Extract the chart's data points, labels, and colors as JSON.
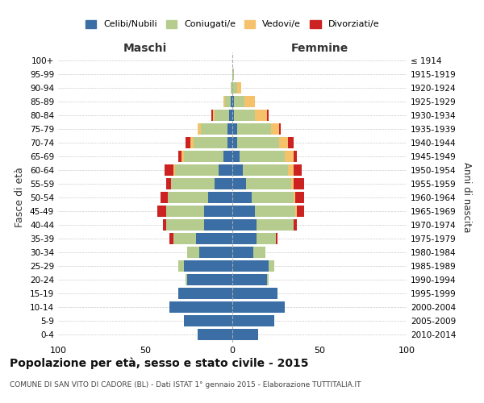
{
  "age_groups": [
    "0-4",
    "5-9",
    "10-14",
    "15-19",
    "20-24",
    "25-29",
    "30-34",
    "35-39",
    "40-44",
    "45-49",
    "50-54",
    "55-59",
    "60-64",
    "65-69",
    "70-74",
    "75-79",
    "80-84",
    "85-89",
    "90-94",
    "95-99",
    "100+"
  ],
  "birth_years": [
    "2010-2014",
    "2005-2009",
    "2000-2004",
    "1995-1999",
    "1990-1994",
    "1985-1989",
    "1980-1984",
    "1975-1979",
    "1970-1974",
    "1965-1969",
    "1960-1964",
    "1955-1959",
    "1950-1954",
    "1945-1949",
    "1940-1944",
    "1935-1939",
    "1930-1934",
    "1925-1929",
    "1920-1924",
    "1915-1919",
    "≤ 1914"
  ],
  "maschi": {
    "celibi": [
      20,
      28,
      36,
      31,
      26,
      28,
      19,
      21,
      16,
      16,
      14,
      10,
      8,
      5,
      3,
      3,
      2,
      1,
      0,
      0,
      0
    ],
    "coniugati": [
      0,
      0,
      0,
      0,
      1,
      3,
      7,
      13,
      22,
      22,
      23,
      25,
      25,
      23,
      19,
      15,
      8,
      3,
      1,
      0,
      0
    ],
    "vedovi": [
      0,
      0,
      0,
      0,
      0,
      0,
      0,
      0,
      0,
      0,
      0,
      0,
      1,
      1,
      2,
      2,
      1,
      1,
      0,
      0,
      0
    ],
    "divorziati": [
      0,
      0,
      0,
      0,
      0,
      0,
      0,
      2,
      2,
      5,
      4,
      3,
      5,
      2,
      3,
      0,
      1,
      0,
      0,
      0,
      0
    ]
  },
  "femmine": {
    "nubili": [
      15,
      24,
      30,
      26,
      20,
      21,
      12,
      14,
      14,
      13,
      11,
      8,
      6,
      4,
      3,
      3,
      1,
      1,
      0,
      0,
      0
    ],
    "coniugate": [
      0,
      0,
      0,
      0,
      1,
      3,
      7,
      11,
      21,
      23,
      24,
      26,
      26,
      26,
      24,
      19,
      12,
      6,
      3,
      1,
      0
    ],
    "vedove": [
      0,
      0,
      0,
      0,
      0,
      0,
      0,
      0,
      0,
      1,
      1,
      1,
      3,
      5,
      5,
      5,
      7,
      6,
      2,
      0,
      0
    ],
    "divorziate": [
      0,
      0,
      0,
      0,
      0,
      0,
      0,
      1,
      2,
      4,
      5,
      6,
      5,
      2,
      3,
      1,
      1,
      0,
      0,
      0,
      0
    ]
  },
  "colors": {
    "celibi": "#3a6ea5",
    "coniugati": "#b5cc8e",
    "vedovi": "#f5c26b",
    "divorziati": "#cc2222"
  },
  "xlim": 100,
  "title": "Popolazione per età, sesso e stato civile - 2015",
  "subtitle": "COMUNE DI SAN VITO DI CADORE (BL) - Dati ISTAT 1° gennaio 2015 - Elaborazione TUTTITALIA.IT",
  "ylabel_left": "Fasce di età",
  "ylabel_right": "Anni di nascita",
  "xlabel_left": "Maschi",
  "xlabel_right": "Femmine"
}
